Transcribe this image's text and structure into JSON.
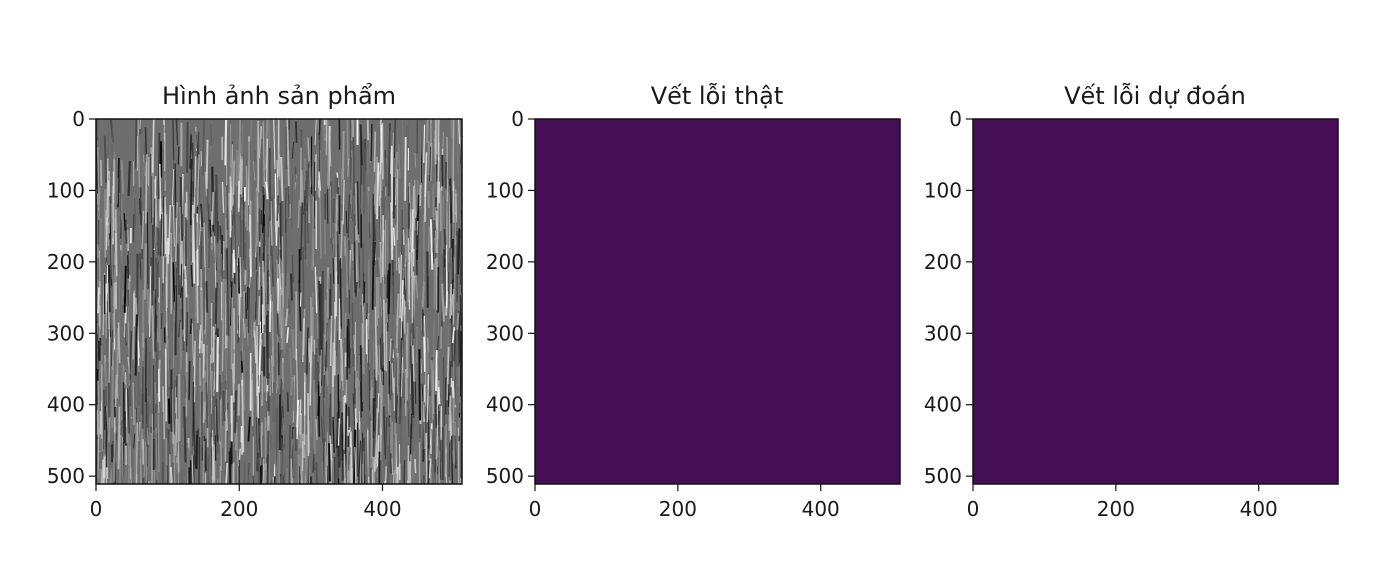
{
  "chart_data": [
    {
      "type": "heatmap",
      "title": "Hình ảnh sản phẩm",
      "colormap": "gray",
      "texture": "vertical-streak-noise",
      "xlim": [
        0,
        511
      ],
      "ylim": [
        511,
        0
      ],
      "xticks": [
        0,
        200,
        400
      ],
      "yticks": [
        0,
        100,
        200,
        300,
        400,
        500
      ],
      "xlabel": "",
      "ylabel": ""
    },
    {
      "type": "heatmap",
      "title": "Vết lỗi thật",
      "colormap": "viridis",
      "fill_color": "#440f54",
      "value": 0,
      "xlim": [
        0,
        511
      ],
      "ylim": [
        511,
        0
      ],
      "xticks": [
        0,
        200,
        400
      ],
      "yticks": [
        0,
        100,
        200,
        300,
        400,
        500
      ],
      "xlabel": "",
      "ylabel": ""
    },
    {
      "type": "heatmap",
      "title": "Vết lỗi dự đoán",
      "colormap": "viridis",
      "fill_color": "#440f54",
      "value": 0,
      "xlim": [
        0,
        511
      ],
      "ylim": [
        511,
        0
      ],
      "xticks": [
        0,
        200,
        400
      ],
      "yticks": [
        0,
        100,
        200,
        300,
        400,
        500
      ],
      "xlabel": "",
      "ylabel": ""
    }
  ]
}
